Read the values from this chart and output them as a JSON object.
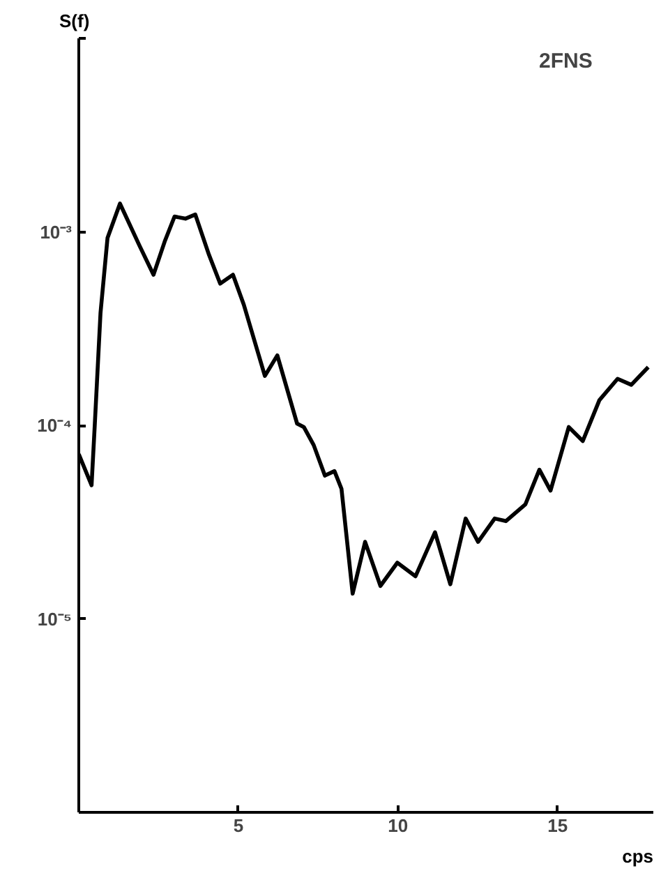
{
  "chart_data": {
    "type": "line",
    "xlabel": "cps",
    "ylabel": "S(f)",
    "annotations": [
      "2FNS"
    ],
    "x": [
      0,
      0.4,
      0.5,
      0.68,
      0.9,
      1.29,
      1.9,
      2.34,
      2.69,
      3.0,
      3.34,
      3.65,
      4.08,
      4.43,
      4.83,
      5.17,
      5.83,
      6.22,
      6.84,
      7.05,
      7.36,
      7.71,
      8.01,
      8.23,
      8.58,
      8.97,
      9.45,
      9.98,
      10.55,
      11.16,
      11.64,
      12.12,
      12.51,
      13.03,
      13.38,
      13.99,
      14.43,
      14.78,
      15.35,
      15.79,
      16.31,
      16.88,
      17.31,
      17.84
    ],
    "series": [
      {
        "color": "#000000",
        "values": [
          7.1e-05,
          4.9e-05,
          0.0001,
          0.00038,
          0.00093,
          0.0014,
          0.00085,
          0.0006,
          0.00089,
          0.0012,
          0.00117,
          0.00123,
          0.00076,
          0.00054,
          0.0006,
          0.00042,
          0.00018,
          0.00023,
          0.000102,
          9.8e-05,
          7.9e-05,
          5.5e-05,
          5.8e-05,
          4.7e-05,
          1.35e-05,
          2.5e-05,
          1.48e-05,
          1.95e-05,
          1.66e-05,
          2.8e-05,
          1.51e-05,
          3.3e-05,
          2.5e-05,
          3.3e-05,
          3.2e-05,
          3.9e-05,
          5.9e-05,
          4.6e-05,
          9.8e-05,
          8.3e-05,
          0.000135,
          0.000174,
          0.000162,
          0.0002
        ]
      }
    ],
    "xlim": [
      0,
      18
    ],
    "xticks": [
      5,
      10,
      15
    ],
    "ylim": [
      1e-06,
      0.01
    ],
    "yticks": [
      {
        "value": 1e-05,
        "label": "10⁻⁵"
      },
      {
        "value": 0.0001,
        "label": "10⁻⁴"
      },
      {
        "value": 0.001,
        "label": "10⁻³"
      },
      {
        "value": 0.01,
        "label": null
      }
    ],
    "log": "y",
    "grid": false,
    "marker": "none",
    "line_style": "solid"
  }
}
